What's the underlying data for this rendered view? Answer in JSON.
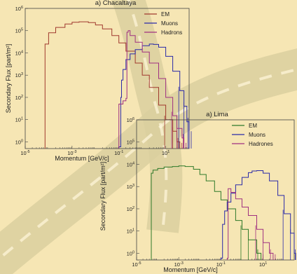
{
  "chart_data": [
    {
      "type": "line",
      "title": "a) Chacaltaya",
      "xlabel": "Momentum [GeV/c]",
      "ylabel": "Secondary Flux [part/m²]",
      "xscale": "log",
      "yscale": "log",
      "xlim": [
        1e-05,
        100
      ],
      "ylim": [
        0.5,
        1000000
      ],
      "x_ticks": [
        {
          "v": 1e-05,
          "b": "10",
          "e": "-5"
        },
        {
          "v": 0.001,
          "b": "10",
          "e": "-3"
        },
        {
          "v": 0.1,
          "b": "10",
          "e": "-1"
        },
        {
          "v": 10,
          "b": "10",
          "e": "1"
        }
      ],
      "y_ticks": [
        {
          "v": 1,
          "b": "10",
          "e": "0"
        },
        {
          "v": 10,
          "b": "10",
          "e": "1"
        },
        {
          "v": 100,
          "b": "10",
          "e": "2"
        },
        {
          "v": 1000,
          "b": "10",
          "e": "3"
        },
        {
          "v": 10000,
          "b": "10",
          "e": "4"
        },
        {
          "v": 100000,
          "b": "10",
          "e": "5"
        },
        {
          "v": 1000000,
          "b": "10",
          "e": "6"
        }
      ],
      "legend_position": "top-right",
      "series": [
        {
          "name": "EM",
          "color": "#a0392e",
          "points": [
            [
              7e-05,
              25000
            ],
            [
              0.0001,
              80000
            ],
            [
              0.0002,
              140000
            ],
            [
              0.0005,
              200000
            ],
            [
              0.001,
              240000
            ],
            [
              0.002,
              250000
            ],
            [
              0.005,
              230000
            ],
            [
              0.01,
              180000
            ],
            [
              0.02,
              120000
            ],
            [
              0.05,
              60000
            ],
            [
              0.1,
              28000
            ],
            [
              0.2,
              12000
            ],
            [
              0.5,
              3500
            ],
            [
              1,
              1000
            ],
            [
              2,
              280
            ],
            [
              5,
              45
            ],
            [
              10,
              10
            ],
            [
              20,
              3
            ],
            [
              30,
              1
            ],
            [
              40,
              0.6
            ]
          ]
        },
        {
          "name": "Muons",
          "color": "#2a2aa8",
          "points": [
            [
              0.1,
              0.6
            ],
            [
              0.12,
              100
            ],
            [
              0.13,
              600
            ],
            [
              0.15,
              1800
            ],
            [
              0.2,
              5000
            ],
            [
              0.3,
              9000
            ],
            [
              0.5,
              14000
            ],
            [
              1,
              21000
            ],
            [
              2,
              25000
            ],
            [
              3,
              24000
            ],
            [
              5,
              18000
            ],
            [
              10,
              7000
            ],
            [
              20,
              1500
            ],
            [
              40,
              200
            ],
            [
              60,
              40
            ],
            [
              80,
              8
            ],
            [
              100,
              2
            ]
          ]
        },
        {
          "name": "Hadrons",
          "color": "#a03080",
          "points": [
            [
              0.1,
              50
            ],
            [
              0.15,
              70
            ],
            [
              0.2,
              90
            ],
            [
              0.22,
              85000
            ],
            [
              0.25,
              100000
            ],
            [
              0.3,
              60000
            ],
            [
              0.5,
              30000
            ],
            [
              1,
              11000
            ],
            [
              2,
              3500
            ],
            [
              5,
              700
            ],
            [
              10,
              100
            ],
            [
              20,
              15
            ],
            [
              30,
              4
            ],
            [
              50,
              1.5
            ],
            [
              60,
              0.6
            ]
          ]
        }
      ]
    },
    {
      "type": "line",
      "title": "a) Lima",
      "xlabel": "Momentum [GeV/c]",
      "ylabel": "Secondary Flux [part/m²]",
      "xscale": "log",
      "yscale": "log",
      "xlim": [
        1e-05,
        300
      ],
      "ylim": [
        0.5,
        1000000
      ],
      "x_ticks": [
        {
          "v": 1e-05,
          "b": "10",
          "e": "-5"
        },
        {
          "v": 0.001,
          "b": "10",
          "e": "-3"
        },
        {
          "v": 0.1,
          "b": "10",
          "e": "-1"
        },
        {
          "v": 10,
          "b": "10",
          "e": "1"
        },
        {
          "v": 1000,
          "b": "10",
          "e": "3"
        }
      ],
      "y_ticks": [
        {
          "v": 1,
          "b": "10",
          "e": "0"
        },
        {
          "v": 10,
          "b": "10",
          "e": "1"
        },
        {
          "v": 100,
          "b": "10",
          "e": "2"
        },
        {
          "v": 1000,
          "b": "10",
          "e": "3"
        },
        {
          "v": 10000,
          "b": "10",
          "e": "4"
        },
        {
          "v": 100000,
          "b": "10",
          "e": "5"
        },
        {
          "v": 1000000,
          "b": "10",
          "e": "6"
        }
      ],
      "legend_position": "top-right",
      "series": [
        {
          "name": "EM",
          "color": "#2f7a2a",
          "points": [
            [
              5e-05,
              4000
            ],
            [
              6e-05,
              5500
            ],
            [
              0.0001,
              6500
            ],
            [
              0.0002,
              7500
            ],
            [
              0.0005,
              8000
            ],
            [
              0.001,
              8500
            ],
            [
              0.002,
              8000
            ],
            [
              0.005,
              6000
            ],
            [
              0.01,
              3500
            ],
            [
              0.02,
              1800
            ],
            [
              0.05,
              600
            ],
            [
              0.1,
              250
            ],
            [
              0.2,
              100
            ],
            [
              0.5,
              30
            ],
            [
              1,
              12
            ],
            [
              2,
              4
            ],
            [
              5,
              1
            ],
            [
              8,
              0.6
            ]
          ]
        },
        {
          "name": "Muons",
          "color": "#2a2aa8",
          "points": [
            [
              0.1,
              0.6
            ],
            [
              0.12,
              20
            ],
            [
              0.15,
              80
            ],
            [
              0.2,
              200
            ],
            [
              0.3,
              500
            ],
            [
              0.5,
              1200
            ],
            [
              1,
              2600
            ],
            [
              2,
              4200
            ],
            [
              3,
              5000
            ],
            [
              5,
              5200
            ],
            [
              10,
              4000
            ],
            [
              20,
              1800
            ],
            [
              50,
              400
            ],
            [
              100,
              60
            ],
            [
              200,
              8
            ],
            [
              300,
              1
            ],
            [
              350,
              0.6
            ]
          ]
        },
        {
          "name": "Hadrones",
          "color": "#a03080",
          "points": [
            [
              0.2,
              0.6
            ],
            [
              0.22,
              800
            ],
            [
              0.3,
              550
            ],
            [
              0.5,
              280
            ],
            [
              1,
              120
            ],
            [
              2,
              50
            ],
            [
              5,
              12
            ],
            [
              10,
              3
            ],
            [
              20,
              1
            ],
            [
              30,
              0.6
            ]
          ]
        }
      ]
    }
  ]
}
